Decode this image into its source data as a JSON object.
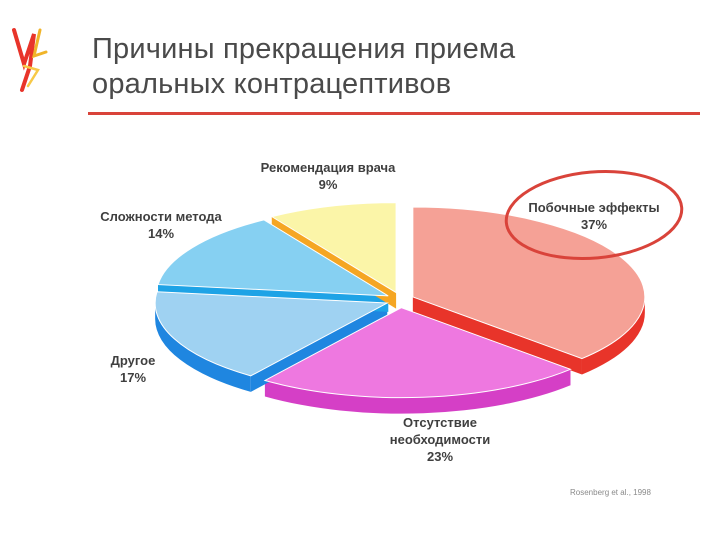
{
  "slide": {
    "title_line1": "Причины прекращения приема",
    "title_line2": "оральных контрацептивов",
    "source": "Rosenberg et al., 1998",
    "accent_color": "#d9433a"
  },
  "chart_data": {
    "type": "pie",
    "title": "",
    "slices": [
      {
        "label": "Побочные эффекты",
        "value": 37,
        "value_label": "37%",
        "color": "#f5a196",
        "side_color": "#e8342a",
        "highlighted": true
      },
      {
        "label": "Отсутствие необходимости",
        "label_lines": [
          "Отсутствие",
          "необходимости"
        ],
        "value": 23,
        "value_label": "23%",
        "color": "#ee78e0",
        "side_color": "#d53fc6"
      },
      {
        "label": "Другое",
        "value": 17,
        "value_label": "17%",
        "color": "#9fd2f2",
        "side_color": "#1f86e0"
      },
      {
        "label": "Сложности метода",
        "value": 14,
        "value_label": "14%",
        "color": "#86d0f2",
        "side_color": "#1ea3e6"
      },
      {
        "label": "Рекомендация врача",
        "value": 9,
        "value_label": "9%",
        "color": "#fbf5a8",
        "side_color": "#f5a623"
      }
    ],
    "style": "3d exploded pie",
    "highlight_color": "#d9433a"
  }
}
